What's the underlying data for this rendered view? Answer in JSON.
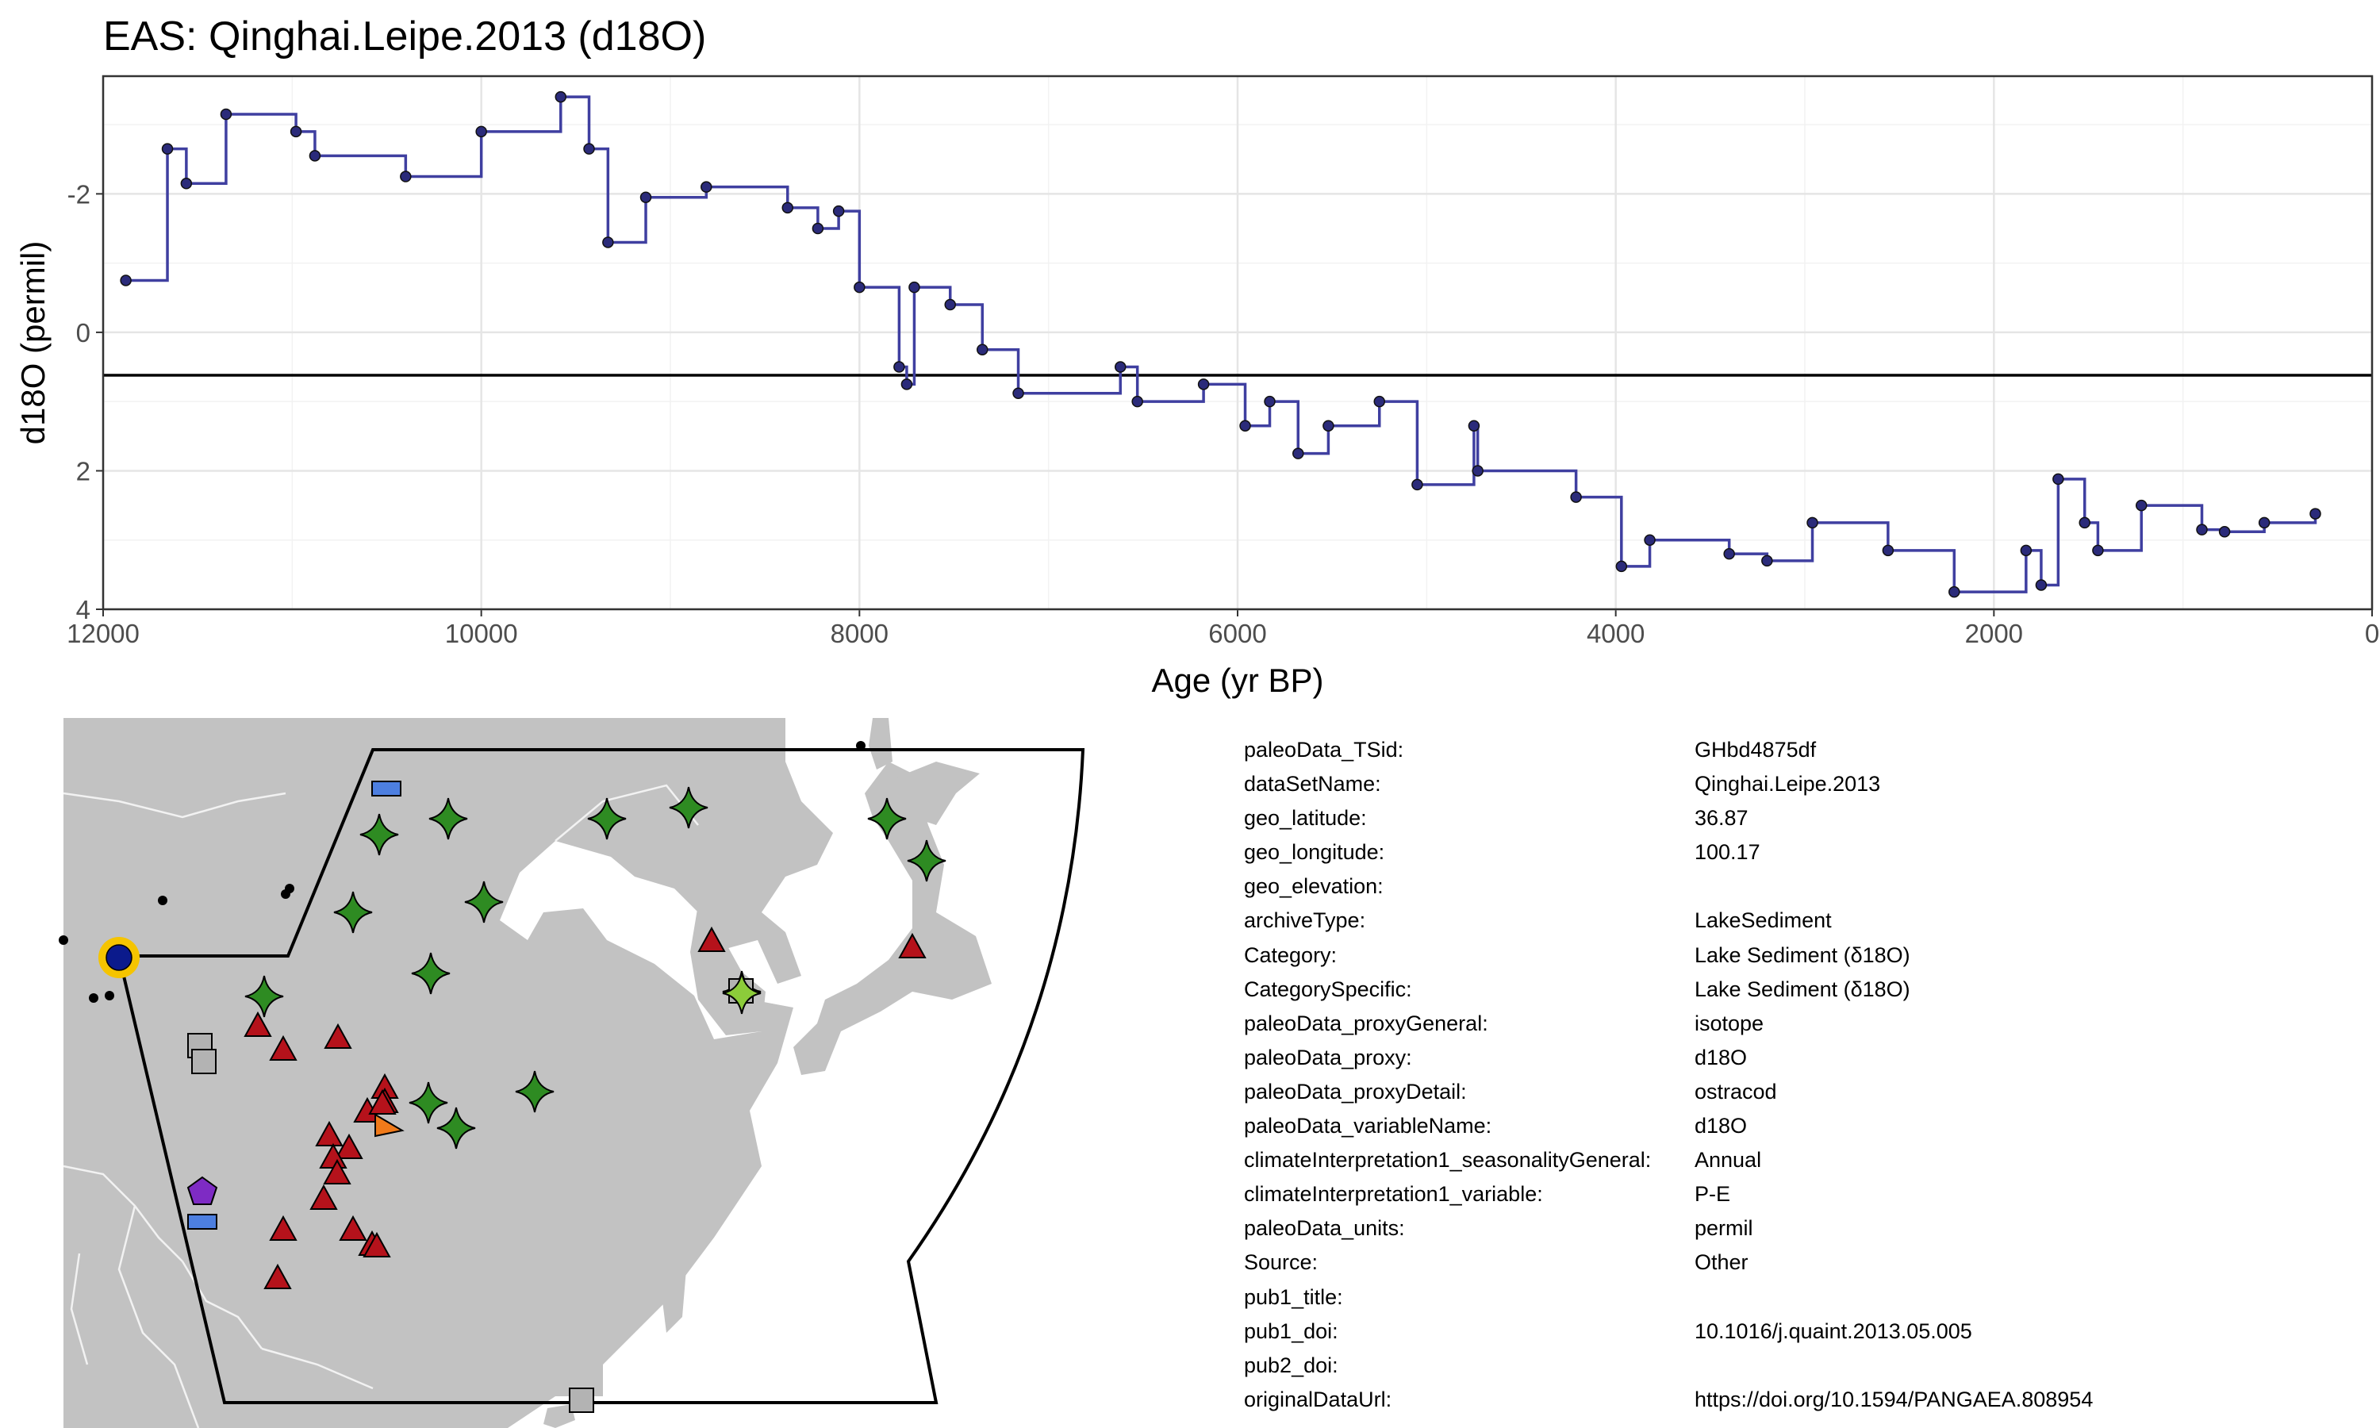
{
  "chart_data": {
    "type": "line",
    "step": true,
    "title": "EAS: Qinghai.Leipe.2013 (d18O)",
    "xlabel": "Age (yr BP)",
    "ylabel": "d18O (permil)",
    "xlim": [
      12000,
      0
    ],
    "x_reversed": true,
    "ylim": [
      4,
      -3.7
    ],
    "y_reversed": true,
    "xticks": [
      12000,
      10000,
      8000,
      6000,
      4000,
      2000,
      0
    ],
    "yticks": [
      -2,
      0,
      2,
      4
    ],
    "grid": true,
    "reference_line_y": 0.62,
    "series": [
      {
        "x": [
          11880,
          11660,
          11560,
          11350,
          10980,
          10880,
          10400,
          10000,
          9580,
          9430,
          9330,
          9130,
          8810,
          8380,
          8220,
          8110,
          8000,
          7790,
          7750,
          7710,
          7520,
          7350,
          7160,
          6620,
          6530,
          6180,
          5960,
          5830,
          5680,
          5520,
          5250,
          5050,
          4750,
          4730,
          4210,
          3970,
          3820,
          3400,
          3200,
          2960,
          2560,
          2210,
          1830,
          1750,
          1660,
          1520,
          1450,
          1220,
          900,
          780,
          570,
          300
        ],
        "y": [
          -0.75,
          -2.65,
          -2.15,
          -3.15,
          -2.9,
          -2.55,
          -2.25,
          -2.9,
          -3.4,
          -2.65,
          -1.3,
          -1.95,
          -2.1,
          -1.8,
          -1.5,
          -1.75,
          -0.65,
          0.5,
          0.75,
          -0.65,
          -0.4,
          0.25,
          0.88,
          0.5,
          1.0,
          0.75,
          1.35,
          1.0,
          1.75,
          1.35,
          1.0,
          2.2,
          1.35,
          2.0,
          2.38,
          3.38,
          3.0,
          3.2,
          3.3,
          2.75,
          3.15,
          3.75,
          3.15,
          3.65,
          2.12,
          2.75,
          3.15,
          2.5,
          2.85,
          2.88,
          2.75,
          2.62
        ]
      }
    ]
  },
  "map": {
    "highlight_site": "Qinghai.Leipe.2013",
    "colors": {
      "land": "#c2c2c2",
      "water": "#ffffff",
      "highlight_fill": "#0b1a8c",
      "highlight_ring": "#f5c400",
      "triangle": "#b5121b",
      "star": "#2e8b22",
      "square": "#b3b3b3",
      "rect": "#4d7fe0",
      "pentagon": "#7e2bc4",
      "orange": "#f07a1a",
      "lightstar": "#8ccc3a"
    }
  },
  "metadata": [
    {
      "key": "paleoData_TSid:",
      "value": "GHbd4875df"
    },
    {
      "key": "dataSetName:",
      "value": "Qinghai.Leipe.2013"
    },
    {
      "key": "geo_latitude:",
      "value": "36.87"
    },
    {
      "key": "geo_longitude:",
      "value": "100.17"
    },
    {
      "key": "geo_elevation:",
      "value": ""
    },
    {
      "key": "archiveType:",
      "value": "LakeSediment"
    },
    {
      "key": "Category:",
      "value": "Lake Sediment (δ18O)"
    },
    {
      "key": "CategorySpecific:",
      "value": "Lake Sediment (δ18O)"
    },
    {
      "key": "paleoData_proxyGeneral:",
      "value": "isotope"
    },
    {
      "key": "paleoData_proxy:",
      "value": "d18O"
    },
    {
      "key": "paleoData_proxyDetail:",
      "value": "ostracod"
    },
    {
      "key": "paleoData_variableName:",
      "value": "d18O"
    },
    {
      "key": "climateInterpretation1_seasonalityGeneral:",
      "value": "Annual"
    },
    {
      "key": "climateInterpretation1_variable:",
      "value": "P-E"
    },
    {
      "key": "paleoData_units:",
      "value": "permil"
    },
    {
      "key": "Source:",
      "value": "Other"
    },
    {
      "key": "pub1_title:",
      "value": ""
    },
    {
      "key": "pub1_doi:",
      "value": "10.1016/j.quaint.2013.05.005"
    },
    {
      "key": "pub2_doi:",
      "value": ""
    },
    {
      "key": "originalDataUrl:",
      "value": "https://doi.org/10.1594/PANGAEA.808954"
    }
  ]
}
